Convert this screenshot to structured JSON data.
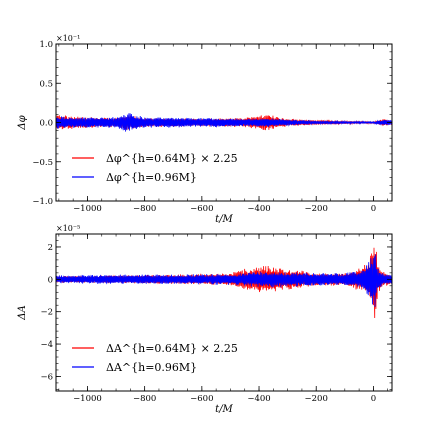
{
  "chart_data": [
    {
      "type": "line",
      "title": "",
      "xlabel": "t/M",
      "ylabel": "Δφ",
      "offset_label": "×10⁻¹",
      "xlim": [
        -1110,
        65
      ],
      "ylim": [
        -1.0,
        1.0
      ],
      "xticks": [
        -1000,
        -800,
        -600,
        -400,
        -200,
        0
      ],
      "xtick_labels": [
        "−1000",
        "−800",
        "−600",
        "−400",
        "−200",
        "0"
      ],
      "yticks": [
        -1.0,
        -0.5,
        0.0,
        0.5,
        1.0
      ],
      "ytick_labels": [
        "−1.0",
        "−0.5",
        "0.0",
        "0.5",
        "1.0"
      ],
      "grid": false,
      "legend_position": "lower-left",
      "series": [
        {
          "name": "Δφ^{h=0.64M} × 2.25",
          "color": "#ff0000",
          "envelope": [
            [
              -1110,
              0.1
            ],
            [
              -1000,
              0.07
            ],
            [
              -900,
              0.06
            ],
            [
              -860,
              0.1
            ],
            [
              -800,
              0.06
            ],
            [
              -600,
              0.05
            ],
            [
              -450,
              0.06
            ],
            [
              -380,
              0.11
            ],
            [
              -300,
              0.05
            ],
            [
              -200,
              0.03
            ],
            [
              -100,
              0.02
            ],
            [
              0,
              0.01
            ],
            [
              40,
              0.05
            ],
            [
              65,
              0.02
            ]
          ]
        },
        {
          "name": "Δφ^{h=0.96M}",
          "color": "#0000ff",
          "envelope": [
            [
              -1110,
              0.08
            ],
            [
              -1000,
              0.07
            ],
            [
              -900,
              0.07
            ],
            [
              -860,
              0.13
            ],
            [
              -800,
              0.07
            ],
            [
              -600,
              0.06
            ],
            [
              -450,
              0.05
            ],
            [
              -380,
              0.06
            ],
            [
              -300,
              0.04
            ],
            [
              -200,
              0.02
            ],
            [
              -100,
              0.015
            ],
            [
              0,
              0.01
            ],
            [
              40,
              0.04
            ],
            [
              65,
              0.03
            ]
          ]
        }
      ]
    },
    {
      "type": "line",
      "title": "",
      "xlabel": "t/M",
      "ylabel": "ΔA",
      "offset_label": "×10⁻⁵",
      "xlim": [
        -1110,
        65
      ],
      "ylim": [
        -6.9,
        2.8
      ],
      "xticks": [
        -1000,
        -800,
        -600,
        -400,
        -200,
        0
      ],
      "xtick_labels": [
        "−1000",
        "−800",
        "−600",
        "−400",
        "−200",
        "0"
      ],
      "yticks": [
        -6,
        -4,
        -2,
        0,
        2
      ],
      "ytick_labels": [
        "−6",
        "−4",
        "−2",
        "0",
        "2"
      ],
      "grid": false,
      "legend_position": "lower-left",
      "series": [
        {
          "name": "ΔA^{h=0.64M} × 2.25",
          "color": "#ff0000",
          "envelope": [
            [
              -1110,
              0.2
            ],
            [
              -900,
              0.25
            ],
            [
              -700,
              0.3
            ],
            [
              -500,
              0.4
            ],
            [
              -400,
              0.9
            ],
            [
              -300,
              0.7
            ],
            [
              -200,
              0.4
            ],
            [
              -100,
              0.4
            ],
            [
              -40,
              0.8
            ],
            [
              -20,
              1.0
            ],
            [
              -5,
              1.8
            ],
            [
              0,
              2.5
            ],
            [
              5,
              3.0
            ],
            [
              15,
              1.0
            ],
            [
              30,
              0.5
            ],
            [
              65,
              0.3
            ]
          ]
        },
        {
          "name": "ΔA^{h=0.96M}",
          "color": "#0000ff",
          "envelope": [
            [
              -1110,
              0.25
            ],
            [
              -900,
              0.3
            ],
            [
              -700,
              0.3
            ],
            [
              -500,
              0.35
            ],
            [
              -400,
              0.5
            ],
            [
              -300,
              0.5
            ],
            [
              -200,
              0.4
            ],
            [
              -100,
              0.4
            ],
            [
              -40,
              0.6
            ],
            [
              -20,
              1.0
            ],
            [
              -5,
              1.6
            ],
            [
              0,
              2.0
            ],
            [
              5,
              2.0
            ],
            [
              15,
              0.8
            ],
            [
              30,
              0.4
            ],
            [
              65,
              0.3
            ]
          ]
        }
      ]
    }
  ]
}
